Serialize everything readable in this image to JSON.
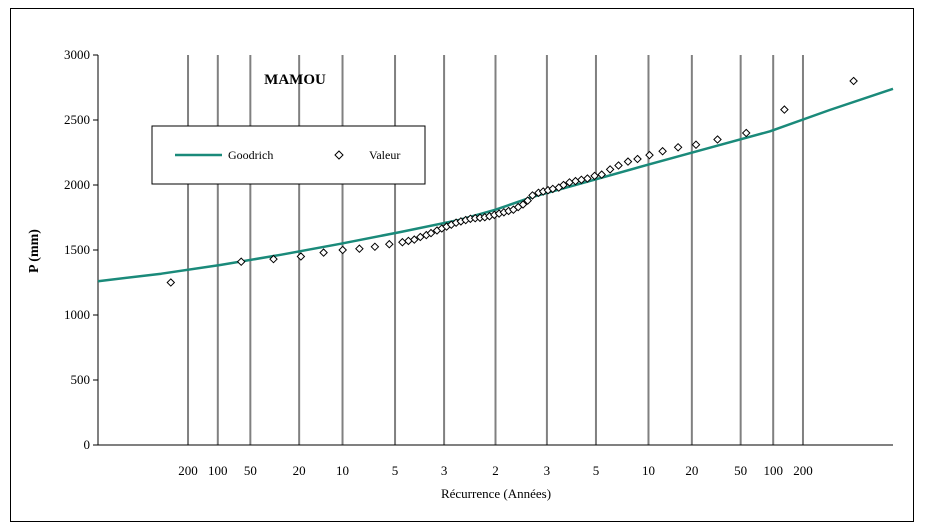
{
  "chart_data": {
    "type": "scatter",
    "title": "MAMOU",
    "xlabel": "Récurrence (Années)",
    "ylabel": "P (mm)",
    "ylim": [
      0,
      3000
    ],
    "yticks": [
      0,
      500,
      1000,
      1500,
      2000,
      2500,
      3000
    ],
    "x_scale": "probability (normal), left: dry recurrence, right: wet recurrence",
    "xlim_z": [
      -3.33,
      3.33
    ],
    "x_tick_labels": [
      "200",
      "100",
      "50",
      "20",
      "10",
      "5",
      "3",
      "2",
      "3",
      "5",
      "10",
      "20",
      "50",
      "100",
      "200"
    ],
    "grid": "vertical lines at recurrence ticks",
    "legend_position": "upper-left (inside plot)",
    "colors": {
      "fit": "#1a8a7a",
      "points": "#000000"
    },
    "series": [
      {
        "name": "Goodrich",
        "style": "line",
        "x": [
          -3.33,
          -2.8,
          -2.3,
          -1.8,
          -1.3,
          -0.8,
          -0.3,
          0,
          0.3,
          0.8,
          1.3,
          1.8,
          2.3,
          2.8,
          3.33
        ],
        "y": [
          1260,
          1318,
          1385,
          1463,
          1548,
          1638,
          1732,
          1810,
          1905,
          2033,
          2162,
          2288,
          2413,
          2577,
          2740
        ]
      },
      {
        "name": "Valeur",
        "style": "markers (diamond)",
        "x": [
          -2.72,
          -2.13,
          -1.86,
          -1.63,
          -1.44,
          -1.28,
          -1.14,
          -1.01,
          -0.89,
          -0.78,
          -0.73,
          -0.68,
          -0.63,
          -0.58,
          -0.54,
          -0.49,
          -0.45,
          -0.41,
          -0.37,
          -0.33,
          -0.29,
          -0.25,
          -0.21,
          -0.17,
          -0.13,
          -0.09,
          -0.05,
          -0.01,
          0.03,
          0.07,
          0.11,
          0.15,
          0.19,
          0.23,
          0.27,
          0.31,
          0.36,
          0.4,
          0.44,
          0.48,
          0.53,
          0.57,
          0.62,
          0.67,
          0.72,
          0.77,
          0.83,
          0.89,
          0.96,
          1.03,
          1.11,
          1.19,
          1.29,
          1.4,
          1.53,
          1.68,
          1.86,
          2.1,
          2.42,
          3.0
        ],
        "y": [
          1250,
          1410,
          1430,
          1450,
          1480,
          1500,
          1510,
          1525,
          1545,
          1560,
          1570,
          1580,
          1600,
          1615,
          1630,
          1650,
          1665,
          1680,
          1695,
          1710,
          1720,
          1730,
          1740,
          1745,
          1748,
          1752,
          1760,
          1770,
          1780,
          1790,
          1800,
          1810,
          1830,
          1850,
          1880,
          1920,
          1940,
          1950,
          1960,
          1970,
          1980,
          2000,
          2020,
          2030,
          2040,
          2050,
          2070,
          2080,
          2120,
          2150,
          2180,
          2200,
          2230,
          2260,
          2290,
          2310,
          2350,
          2400,
          2580,
          2800
        ]
      }
    ]
  }
}
